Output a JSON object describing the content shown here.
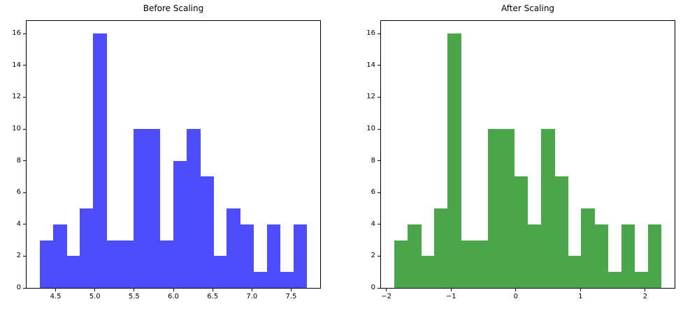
{
  "figure": {
    "background": "#ffffff",
    "text_color": "#000000",
    "spine_color": "#000000"
  },
  "chart_data": [
    {
      "type": "bar",
      "subtype": "histogram",
      "title": "Before Scaling",
      "color": "#4d4dfe",
      "bin_start": 4.3,
      "bin_end": 7.7,
      "bin_count": 20,
      "counts": [
        3,
        4,
        2,
        5,
        16,
        3,
        3,
        10,
        10,
        3,
        8,
        10,
        7,
        2,
        5,
        4,
        1,
        4,
        1,
        4
      ],
      "xlim": [
        4.13,
        7.87
      ],
      "ylim": [
        0,
        16.8
      ],
      "xticks": [
        4.5,
        5.0,
        5.5,
        6.0,
        6.5,
        7.0,
        7.5
      ],
      "xtick_labels": [
        "4.5",
        "5.0",
        "5.5",
        "6.0",
        "6.5",
        "7.0",
        "7.5"
      ],
      "yticks": [
        0,
        2,
        4,
        6,
        8,
        10,
        12,
        14,
        16
      ],
      "ytick_labels": [
        "0",
        "2",
        "4",
        "6",
        "8",
        "10",
        "12",
        "14",
        "16"
      ],
      "grid": false,
      "legend": null
    },
    {
      "type": "bar",
      "subtype": "histogram",
      "title": "After Scaling",
      "color": "#4ba64b",
      "bin_start": -1.876,
      "bin_end": 2.248,
      "bin_count": 20,
      "counts": [
        3,
        4,
        2,
        5,
        16,
        3,
        3,
        10,
        10,
        7,
        4,
        10,
        7,
        2,
        5,
        4,
        1,
        4,
        1,
        4
      ],
      "xlim": [
        -2.082,
        2.454
      ],
      "ylim": [
        0,
        16.8
      ],
      "xticks": [
        -2,
        -1,
        0,
        1,
        2
      ],
      "xtick_labels": [
        "−2",
        "−1",
        "0",
        "1",
        "2"
      ],
      "yticks": [
        0,
        2,
        4,
        6,
        8,
        10,
        12,
        14,
        16
      ],
      "ytick_labels": [
        "0",
        "2",
        "4",
        "6",
        "8",
        "10",
        "12",
        "14",
        "16"
      ],
      "grid": false,
      "legend": null
    }
  ]
}
